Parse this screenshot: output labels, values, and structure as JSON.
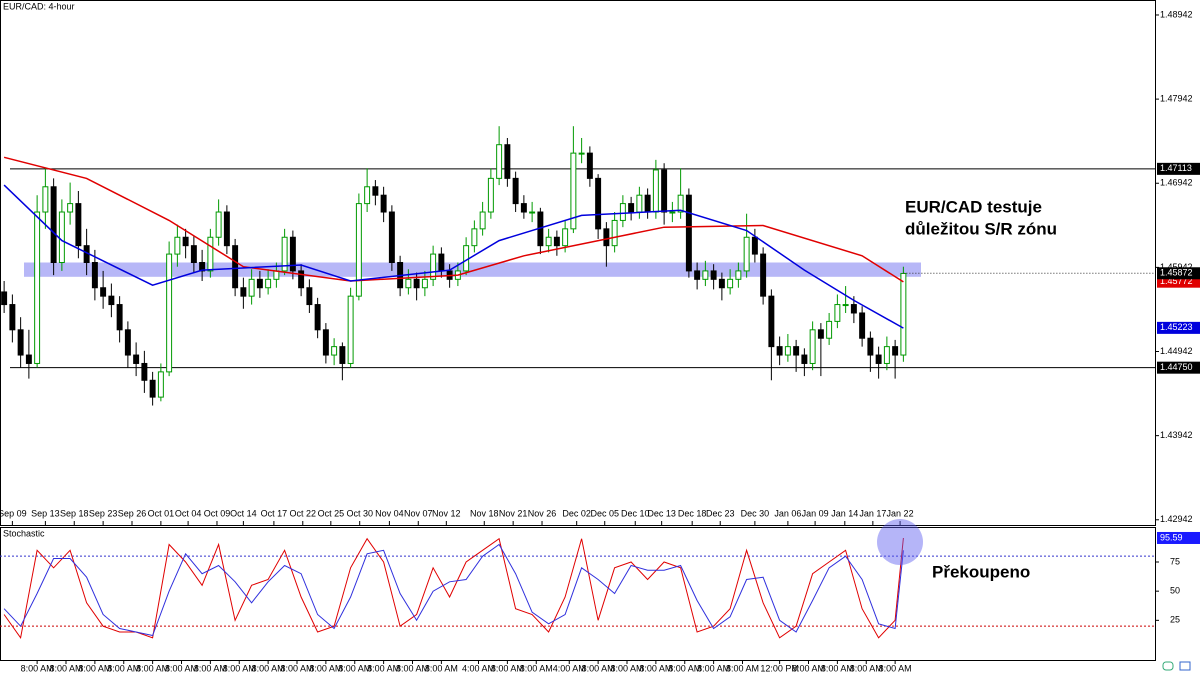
{
  "chart_data": {
    "type": "candlestick",
    "title": "EUR/CAD: 4-hour",
    "xlim": [
      -0.5,
      139.5
    ],
    "ylim": [
      1.4288,
      1.4912
    ],
    "yticks": [
      1.48942,
      1.47942,
      1.46942,
      1.45942,
      1.44942,
      1.43942,
      1.42942
    ],
    "xticks": [
      {
        "value": 1,
        "label": "Sep 09"
      },
      {
        "value": 5,
        "label": "Sep 13"
      },
      {
        "value": 8.5,
        "label": "Sep 18"
      },
      {
        "value": 12,
        "label": "Sep 23"
      },
      {
        "value": 15.5,
        "label": "Sep 26"
      },
      {
        "value": 19,
        "label": "Oct 01"
      },
      {
        "value": 22.3,
        "label": "Oct 04"
      },
      {
        "value": 25.8,
        "label": "Oct 09"
      },
      {
        "value": 29,
        "label": "Oct 14"
      },
      {
        "value": 32.7,
        "label": "Oct 17"
      },
      {
        "value": 36.2,
        "label": "Oct 22"
      },
      {
        "value": 39.6,
        "label": "Oct 25"
      },
      {
        "value": 43.1,
        "label": "Oct 30"
      },
      {
        "value": 46.7,
        "label": "Nov 04"
      },
      {
        "value": 50.2,
        "label": "Nov 07"
      },
      {
        "value": 53.6,
        "label": "Nov 12"
      },
      {
        "value": 58.2,
        "label": "Nov 18"
      },
      {
        "value": 61.7,
        "label": "Nov 21"
      },
      {
        "value": 65.2,
        "label": "Nov 26"
      },
      {
        "value": 69.4,
        "label": "Dec 02"
      },
      {
        "value": 72.8,
        "label": "Dec 05"
      },
      {
        "value": 76.5,
        "label": "Dec 10"
      },
      {
        "value": 79.7,
        "label": "Dec 13"
      },
      {
        "value": 83.4,
        "label": "Dec 18"
      },
      {
        "value": 86.8,
        "label": "Dec 23"
      },
      {
        "value": 91,
        "label": "Dec 30"
      },
      {
        "value": 95,
        "label": "Jan 06"
      },
      {
        "value": 98.3,
        "label": "Jan 09"
      },
      {
        "value": 101.9,
        "label": "Jan 14"
      },
      {
        "value": 105.3,
        "label": "Jan 17"
      },
      {
        "value": 108.6,
        "label": "Jan 22"
      }
    ],
    "time_ticks": [
      {
        "value": 4,
        "label": "8:00 AM"
      },
      {
        "value": 7.5,
        "label": "8:00 AM"
      },
      {
        "value": 11,
        "label": "8:00 AM"
      },
      {
        "value": 14.5,
        "label": "8:00 AM"
      },
      {
        "value": 18,
        "label": "8:00 AM"
      },
      {
        "value": 21.5,
        "label": "8:00 AM"
      },
      {
        "value": 25,
        "label": "8:00 AM"
      },
      {
        "value": 28.5,
        "label": "8:00 AM"
      },
      {
        "value": 32,
        "label": "8:00 AM"
      },
      {
        "value": 35.5,
        "label": "8:00 AM"
      },
      {
        "value": 39,
        "label": "8:00 AM"
      },
      {
        "value": 42.5,
        "label": "8:00 AM"
      },
      {
        "value": 46,
        "label": "8:00 AM"
      },
      {
        "value": 49.5,
        "label": "8:00 AM"
      },
      {
        "value": 53,
        "label": "8:00 AM"
      },
      {
        "value": 57.5,
        "label": "4:00 AM"
      },
      {
        "value": 61,
        "label": "8:00 AM"
      },
      {
        "value": 64.5,
        "label": "8:00 AM"
      },
      {
        "value": 68.5,
        "label": "4:00 AM"
      },
      {
        "value": 72,
        "label": "8:00 AM"
      },
      {
        "value": 75.5,
        "label": "8:00 AM"
      },
      {
        "value": 79,
        "label": "8:00 AM"
      },
      {
        "value": 82.5,
        "label": "8:00 AM"
      },
      {
        "value": 86,
        "label": "8:00 AM"
      },
      {
        "value": 89.5,
        "label": "8:00 AM"
      },
      {
        "value": 94,
        "label": "12:00 PM"
      },
      {
        "value": 97.5,
        "label": "8:00 AM"
      },
      {
        "value": 101,
        "label": "8:00 AM"
      },
      {
        "value": 104.5,
        "label": "8:00 AM"
      },
      {
        "value": 108,
        "label": "8:00 AM"
      }
    ],
    "up_color": "#009900",
    "down_color": "#000000",
    "candles": [
      [
        1.4565,
        1.4578,
        1.454,
        1.455
      ],
      [
        1.455,
        1.4562,
        1.4505,
        1.452
      ],
      [
        1.452,
        1.4535,
        1.4475,
        1.449
      ],
      [
        1.449,
        1.452,
        1.4462,
        1.448
      ],
      [
        1.448,
        1.468,
        1.4475,
        1.466
      ],
      [
        1.466,
        1.4712,
        1.464,
        1.469
      ],
      [
        1.469,
        1.47,
        1.4585,
        1.46
      ],
      [
        1.46,
        1.4675,
        1.459,
        1.466
      ],
      [
        1.466,
        1.4695,
        1.4645,
        1.467
      ],
      [
        1.467,
        1.4685,
        1.4605,
        1.462
      ],
      [
        1.462,
        1.464,
        1.4585,
        1.46
      ],
      [
        1.46,
        1.4615,
        1.4555,
        1.457
      ],
      [
        1.457,
        1.459,
        1.4545,
        1.456
      ],
      [
        1.456,
        1.4575,
        1.4535,
        1.455
      ],
      [
        1.455,
        1.456,
        1.4505,
        1.452
      ],
      [
        1.452,
        1.453,
        1.4475,
        1.449
      ],
      [
        1.449,
        1.4505,
        1.4465,
        1.448
      ],
      [
        1.448,
        1.4495,
        1.4445,
        1.446
      ],
      [
        1.446,
        1.447,
        1.443,
        1.444
      ],
      [
        1.444,
        1.448,
        1.4435,
        1.447
      ],
      [
        1.447,
        1.4625,
        1.4465,
        1.461
      ],
      [
        1.461,
        1.4645,
        1.4595,
        1.463
      ],
      [
        1.463,
        1.464,
        1.4605,
        1.462
      ],
      [
        1.462,
        1.4632,
        1.4588,
        1.46
      ],
      [
        1.46,
        1.4615,
        1.4578,
        1.459
      ],
      [
        1.459,
        1.464,
        1.4582,
        1.463
      ],
      [
        1.463,
        1.4675,
        1.462,
        1.466
      ],
      [
        1.466,
        1.4668,
        1.461,
        1.462
      ],
      [
        1.462,
        1.4628,
        1.456,
        1.457
      ],
      [
        1.457,
        1.4582,
        1.4545,
        1.456
      ],
      [
        1.456,
        1.4592,
        1.455,
        1.458
      ],
      [
        1.458,
        1.459,
        1.4558,
        1.457
      ],
      [
        1.457,
        1.4592,
        1.4562,
        1.458
      ],
      [
        1.458,
        1.46,
        1.457,
        1.459
      ],
      [
        1.459,
        1.464,
        1.4585,
        1.463
      ],
      [
        1.463,
        1.4638,
        1.458,
        1.459
      ],
      [
        1.459,
        1.4598,
        1.456,
        1.457
      ],
      [
        1.457,
        1.458,
        1.454,
        1.455
      ],
      [
        1.455,
        1.4558,
        1.451,
        1.452
      ],
      [
        1.452,
        1.4528,
        1.448,
        1.449
      ],
      [
        1.449,
        1.451,
        1.4478,
        1.45
      ],
      [
        1.45,
        1.4505,
        1.446,
        1.448
      ],
      [
        1.448,
        1.457,
        1.4475,
        1.456
      ],
      [
        1.456,
        1.4682,
        1.4555,
        1.467
      ],
      [
        1.467,
        1.4712,
        1.466,
        1.469
      ],
      [
        1.469,
        1.4698,
        1.4668,
        1.468
      ],
      [
        1.468,
        1.469,
        1.4648,
        1.466
      ],
      [
        1.466,
        1.4668,
        1.459,
        1.46
      ],
      [
        1.46,
        1.4608,
        1.456,
        1.457
      ],
      [
        1.457,
        1.4592,
        1.4562,
        1.458
      ],
      [
        1.458,
        1.4588,
        1.4555,
        1.457
      ],
      [
        1.457,
        1.459,
        1.456,
        1.458
      ],
      [
        1.458,
        1.462,
        1.4572,
        1.461
      ],
      [
        1.461,
        1.4618,
        1.4582,
        1.459
      ],
      [
        1.459,
        1.4598,
        1.457,
        1.458
      ],
      [
        1.458,
        1.46,
        1.4572,
        1.459
      ],
      [
        1.459,
        1.463,
        1.4585,
        1.462
      ],
      [
        1.462,
        1.465,
        1.4612,
        1.464
      ],
      [
        1.464,
        1.4672,
        1.4632,
        1.466
      ],
      [
        1.466,
        1.4712,
        1.4652,
        1.47
      ],
      [
        1.47,
        1.4762,
        1.4692,
        1.474
      ],
      [
        1.474,
        1.4748,
        1.469,
        1.47
      ],
      [
        1.47,
        1.4708,
        1.466,
        1.467
      ],
      [
        1.467,
        1.468,
        1.4652,
        1.466
      ],
      [
        1.466,
        1.4672,
        1.4648,
        1.466
      ],
      [
        1.466,
        1.4665,
        1.461,
        1.462
      ],
      [
        1.462,
        1.464,
        1.4612,
        1.463
      ],
      [
        1.463,
        1.4638,
        1.4608,
        1.462
      ],
      [
        1.462,
        1.465,
        1.4612,
        1.464
      ],
      [
        1.464,
        1.4762,
        1.4635,
        1.473
      ],
      [
        1.473,
        1.4748,
        1.4718,
        1.473
      ],
      [
        1.473,
        1.4738,
        1.469,
        1.47
      ],
      [
        1.47,
        1.4705,
        1.4628,
        1.464
      ],
      [
        1.464,
        1.4648,
        1.4595,
        1.462
      ],
      [
        1.462,
        1.466,
        1.4612,
        1.465
      ],
      [
        1.465,
        1.468,
        1.4642,
        1.467
      ],
      [
        1.467,
        1.4678,
        1.465,
        1.466
      ],
      [
        1.466,
        1.469,
        1.4652,
        1.468
      ],
      [
        1.468,
        1.4688,
        1.4652,
        1.466
      ],
      [
        1.466,
        1.4722,
        1.4652,
        1.471
      ],
      [
        1.471,
        1.4718,
        1.4645,
        1.466
      ],
      [
        1.466,
        1.4672,
        1.4648,
        1.466
      ],
      [
        1.466,
        1.4712,
        1.4652,
        1.468
      ],
      [
        1.468,
        1.4688,
        1.4582,
        1.459
      ],
      [
        1.459,
        1.46,
        1.4568,
        1.458
      ],
      [
        1.458,
        1.4602,
        1.4572,
        1.459
      ],
      [
        1.459,
        1.4598,
        1.4568,
        1.458
      ],
      [
        1.458,
        1.4588,
        1.4555,
        1.457
      ],
      [
        1.457,
        1.4592,
        1.4562,
        1.458
      ],
      [
        1.458,
        1.46,
        1.457,
        1.459
      ],
      [
        1.459,
        1.4658,
        1.4582,
        1.463
      ],
      [
        1.463,
        1.464,
        1.46,
        1.461
      ],
      [
        1.461,
        1.4618,
        1.455,
        1.456
      ],
      [
        1.456,
        1.4568,
        1.446,
        1.45
      ],
      [
        1.45,
        1.4512,
        1.4478,
        1.449
      ],
      [
        1.449,
        1.4515,
        1.4482,
        1.45
      ],
      [
        1.45,
        1.4508,
        1.447,
        1.449
      ],
      [
        1.449,
        1.4498,
        1.4465,
        1.448
      ],
      [
        1.448,
        1.453,
        1.4472,
        1.452
      ],
      [
        1.452,
        1.4528,
        1.4465,
        1.451
      ],
      [
        1.451,
        1.454,
        1.4502,
        1.453
      ],
      [
        1.453,
        1.4562,
        1.4522,
        1.455
      ],
      [
        1.455,
        1.4572,
        1.454,
        1.455
      ],
      [
        1.455,
        1.456,
        1.4528,
        1.454
      ],
      [
        1.454,
        1.4548,
        1.45,
        1.451
      ],
      [
        1.451,
        1.4518,
        1.447,
        1.449
      ],
      [
        1.449,
        1.45,
        1.4462,
        1.448
      ],
      [
        1.448,
        1.4512,
        1.4472,
        1.45
      ],
      [
        1.45,
        1.4508,
        1.4462,
        1.449
      ],
      [
        1.449,
        1.4595,
        1.4482,
        1.4587
      ]
    ],
    "moving_averages": [
      {
        "color": "#e00000",
        "x": [
          0,
          10,
          20,
          29,
          42,
          55,
          63,
          75,
          80,
          92,
          104,
          109
        ],
        "values": [
          1.4725,
          1.47,
          1.465,
          1.4595,
          1.4578,
          1.4585,
          1.4608,
          1.4632,
          1.4642,
          1.4644,
          1.4608,
          1.4577
        ],
        "tag": 1.45772
      },
      {
        "color": "#0000dd",
        "x": [
          0,
          7,
          18,
          24,
          36,
          42,
          54,
          60,
          70,
          82,
          90,
          97,
          103,
          109
        ],
        "values": [
          1.4692,
          1.4626,
          1.4573,
          1.4591,
          1.4597,
          1.4578,
          1.4591,
          1.4626,
          1.4656,
          1.4662,
          1.4638,
          1.4591,
          1.4555,
          1.4522
        ],
        "tag": 1.45223
      }
    ],
    "hlines": [
      1.47113,
      {
        "value": 1.4475,
        "label": "1.44750"
      }
    ],
    "zone": [
      1.4583,
      1.46
    ],
    "zone_color": "#6f6ff0",
    "last_price": 1.45872,
    "annotations": [
      "EUR/CAD testuje",
      "důležitou S/R zónu",
      "Překoupeno"
    ],
    "stochastic": {
      "title": "Stochastic",
      "ylim": [
        -9,
        105
      ],
      "yticks": [
        25,
        50,
        75
      ],
      "levels": [
        {
          "value": 80,
          "color": "#3333cc"
        },
        {
          "value": 20,
          "color": "#cc0000"
        }
      ],
      "tag": 95.59,
      "lines": [
        {
          "color": "#e00000",
          "x": [
            0,
            2,
            4,
            6,
            8,
            10,
            12,
            14,
            16,
            18,
            20,
            22,
            24,
            26,
            28,
            30,
            32,
            34,
            36,
            38,
            40,
            42,
            44,
            46,
            48,
            50,
            52,
            54,
            56,
            58,
            60,
            62,
            64,
            66,
            68,
            70,
            72,
            74,
            76,
            78,
            80,
            82,
            84,
            86,
            88,
            90,
            92,
            94,
            96,
            98,
            100,
            102,
            104,
            106,
            108,
            109
          ],
          "values": [
            30,
            10,
            85,
            70,
            85,
            40,
            20,
            15,
            15,
            10,
            90,
            75,
            55,
            90,
            25,
            55,
            60,
            85,
            45,
            15,
            20,
            70,
            95,
            75,
            20,
            30,
            70,
            45,
            75,
            85,
            95,
            35,
            30,
            15,
            45,
            95,
            25,
            70,
            75,
            60,
            75,
            70,
            15,
            20,
            35,
            85,
            40,
            10,
            20,
            65,
            75,
            85,
            35,
            10,
            25,
            95.59
          ]
        },
        {
          "color": "#3030dd",
          "x": [
            0,
            2,
            4,
            6,
            8,
            10,
            12,
            14,
            16,
            18,
            20,
            22,
            24,
            26,
            28,
            30,
            32,
            34,
            36,
            38,
            40,
            42,
            44,
            46,
            48,
            50,
            52,
            54,
            56,
            58,
            60,
            62,
            64,
            66,
            68,
            70,
            72,
            74,
            76,
            78,
            80,
            82,
            84,
            86,
            88,
            90,
            92,
            94,
            96,
            98,
            100,
            102,
            104,
            106,
            108,
            109
          ],
          "values": [
            35,
            20,
            48,
            78,
            78,
            62,
            30,
            18,
            15,
            12,
            50,
            82,
            65,
            72,
            58,
            40,
            58,
            72,
            65,
            30,
            18,
            45,
            82,
            85,
            48,
            25,
            50,
            58,
            60,
            80,
            90,
            65,
            32,
            22,
            30,
            70,
            60,
            48,
            72,
            68,
            68,
            72,
            42,
            18,
            28,
            60,
            62,
            25,
            15,
            42,
            70,
            80,
            60,
            22,
            18,
            85
          ]
        }
      ]
    }
  }
}
